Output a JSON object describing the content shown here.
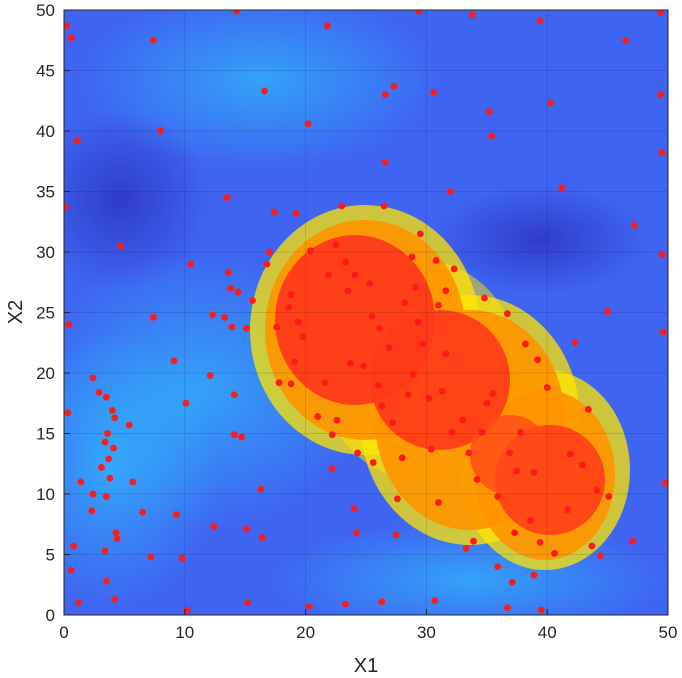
{
  "chart_data": {
    "type": "scatter",
    "title": "",
    "xlabel": "X1",
    "ylabel": "X2",
    "xlim": [
      0,
      50
    ],
    "ylim": [
      0,
      50
    ],
    "xticks": [
      "0",
      "10",
      "20",
      "30",
      "40",
      "50"
    ],
    "yticks": [
      "0",
      "5",
      "10",
      "15",
      "20",
      "25",
      "30",
      "35",
      "40",
      "45",
      "50"
    ],
    "grid": true,
    "background": "heatmap (jet colormap): high region in the center-right band, low elsewhere",
    "colors": {
      "marker": "#ff1a1a",
      "marker_dim": "#7a3aa0",
      "axis": "#262626"
    },
    "points": [
      [
        0.2,
        48.7
      ],
      [
        0.6,
        47.7
      ],
      [
        1.1,
        39.2
      ],
      [
        0.1,
        33.7
      ],
      [
        0.4,
        24.0
      ],
      [
        0.3,
        16.7
      ],
      [
        0.8,
        5.7
      ],
      [
        0.6,
        3.7
      ],
      [
        1.2,
        1.0
      ],
      [
        1.4,
        11.0
      ],
      [
        2.3,
        8.6
      ],
      [
        2.4,
        10.0
      ],
      [
        2.4,
        19.6
      ],
      [
        2.9,
        18.4
      ],
      [
        3.1,
        12.2
      ],
      [
        3.4,
        14.3
      ],
      [
        3.5,
        18.0
      ],
      [
        3.6,
        15.0
      ],
      [
        3.7,
        12.9
      ],
      [
        3.5,
        9.8
      ],
      [
        3.8,
        11.3
      ],
      [
        3.4,
        5.3
      ],
      [
        3.5,
        2.8
      ],
      [
        4.0,
        16.9
      ],
      [
        4.2,
        16.3
      ],
      [
        4.1,
        13.8
      ],
      [
        4.3,
        6.8
      ],
      [
        4.4,
        6.3
      ],
      [
        4.2,
        1.3
      ],
      [
        4.7,
        30.5
      ],
      [
        5.4,
        15.7
      ],
      [
        5.7,
        11.0
      ],
      [
        6.5,
        8.5
      ],
      [
        7.2,
        4.8
      ],
      [
        7.4,
        24.6
      ],
      [
        7.4,
        47.5
      ],
      [
        8.0,
        40.0
      ],
      [
        9.1,
        21.0
      ],
      [
        9.3,
        8.3
      ],
      [
        9.8,
        4.7
      ],
      [
        10.1,
        17.5
      ],
      [
        10.2,
        0.4
      ],
      [
        10.5,
        29.0
      ],
      [
        12.1,
        19.8
      ],
      [
        12.3,
        24.8
      ],
      [
        12.4,
        7.3
      ],
      [
        13.3,
        24.6
      ],
      [
        13.5,
        34.5
      ],
      [
        13.6,
        28.3
      ],
      [
        13.8,
        27.0
      ],
      [
        13.9,
        23.8
      ],
      [
        14.1,
        18.2
      ],
      [
        14.1,
        14.9
      ],
      [
        14.3,
        49.9
      ],
      [
        14.4,
        26.7
      ],
      [
        14.7,
        14.7
      ],
      [
        15.1,
        23.7
      ],
      [
        15.1,
        7.1
      ],
      [
        15.2,
        1.0
      ],
      [
        15.6,
        26.0
      ],
      [
        16.3,
        10.4
      ],
      [
        16.4,
        6.4
      ],
      [
        16.6,
        43.3
      ],
      [
        16.8,
        29.0
      ],
      [
        17.0,
        30.0
      ],
      [
        17.4,
        33.3
      ],
      [
        17.6,
        23.8
      ],
      [
        17.8,
        19.2
      ],
      [
        18.6,
        25.4
      ],
      [
        18.8,
        19.1
      ],
      [
        18.8,
        26.5
      ],
      [
        19.1,
        20.9
      ],
      [
        19.2,
        33.2
      ],
      [
        19.4,
        24.2
      ],
      [
        19.8,
        23.0
      ],
      [
        20.2,
        40.6
      ],
      [
        20.3,
        0.7
      ],
      [
        21.0,
        16.4
      ],
      [
        21.8,
        48.7
      ],
      [
        21.9,
        28.1
      ],
      [
        22.2,
        14.9
      ],
      [
        22.2,
        12.1
      ],
      [
        22.6,
        16.1
      ],
      [
        23.0,
        33.8
      ],
      [
        23.3,
        29.2
      ],
      [
        23.5,
        26.8
      ],
      [
        23.7,
        20.8
      ],
      [
        24.1,
        28.1
      ],
      [
        24.2,
        6.8
      ],
      [
        24.3,
        13.4
      ],
      [
        24.8,
        20.6
      ],
      [
        25.3,
        27.4
      ],
      [
        25.5,
        24.7
      ],
      [
        26.0,
        19.0
      ],
      [
        26.3,
        17.3
      ],
      [
        26.5,
        33.8
      ],
      [
        26.6,
        37.4
      ],
      [
        26.6,
        43.0
      ],
      [
        26.9,
        22.1
      ],
      [
        27.2,
        15.9
      ],
      [
        27.3,
        43.7
      ],
      [
        27.6,
        9.6
      ],
      [
        28.2,
        25.8
      ],
      [
        28.5,
        18.2
      ],
      [
        28.9,
        19.9
      ],
      [
        29.1,
        27.1
      ],
      [
        29.4,
        49.9
      ],
      [
        29.5,
        31.5
      ],
      [
        29.7,
        22.4
      ],
      [
        30.2,
        17.9
      ],
      [
        30.6,
        43.2
      ],
      [
        30.8,
        29.3
      ],
      [
        31.0,
        25.6
      ],
      [
        31.3,
        18.5
      ],
      [
        31.6,
        26.8
      ],
      [
        32.0,
        35.0
      ],
      [
        32.3,
        28.6
      ],
      [
        33.0,
        16.1
      ],
      [
        33.3,
        5.5
      ],
      [
        33.8,
        49.6
      ],
      [
        34.2,
        11.2
      ],
      [
        34.8,
        26.2
      ],
      [
        35.0,
        17.5
      ],
      [
        35.2,
        41.6
      ],
      [
        35.4,
        39.6
      ],
      [
        35.9,
        4.0
      ],
      [
        36.7,
        24.9
      ],
      [
        36.9,
        13.4
      ],
      [
        37.1,
        2.7
      ],
      [
        37.5,
        11.9
      ],
      [
        38.2,
        22.4
      ],
      [
        38.6,
        7.8
      ],
      [
        39.2,
        21.1
      ],
      [
        39.4,
        6.0
      ],
      [
        40.0,
        18.8
      ],
      [
        40.3,
        42.3
      ],
      [
        40.6,
        5.1
      ],
      [
        41.2,
        35.3
      ],
      [
        41.9,
        13.3
      ],
      [
        42.3,
        22.5
      ],
      [
        43.4,
        17.0
      ],
      [
        43.7,
        5.7
      ],
      [
        44.1,
        10.3
      ],
      [
        44.4,
        4.9
      ],
      [
        45.0,
        25.1
      ],
      [
        45.1,
        9.8
      ],
      [
        46.5,
        47.5
      ],
      [
        47.1,
        6.1
      ],
      [
        47.2,
        32.2
      ],
      [
        49.4,
        49.8
      ],
      [
        49.4,
        43.0
      ],
      [
        49.5,
        38.2
      ],
      [
        49.5,
        29.8
      ],
      [
        49.6,
        23.4
      ],
      [
        49.8,
        10.9
      ],
      [
        39.4,
        49.1
      ],
      [
        39.5,
        0.4
      ],
      [
        38.9,
        3.3
      ],
      [
        36.7,
        0.6
      ],
      [
        30.7,
        1.2
      ],
      [
        26.3,
        1.1
      ],
      [
        23.3,
        0.9
      ],
      [
        32.1,
        15.1
      ],
      [
        33.9,
        6.1
      ],
      [
        31.0,
        9.3
      ],
      [
        35.5,
        18.3
      ],
      [
        28.0,
        13.0
      ],
      [
        25.6,
        12.6
      ],
      [
        27.5,
        6.6
      ],
      [
        24.0,
        8.8
      ],
      [
        20.4,
        30.1
      ],
      [
        21.6,
        19.2
      ],
      [
        22.5,
        30.6
      ],
      [
        26.1,
        23.7
      ],
      [
        28.8,
        29.6
      ],
      [
        30.4,
        13.7
      ],
      [
        33.5,
        13.4
      ],
      [
        35.9,
        9.8
      ],
      [
        37.8,
        15.1
      ],
      [
        38.9,
        11.8
      ],
      [
        41.7,
        8.7
      ],
      [
        42.9,
        12.4
      ],
      [
        37.3,
        6.8
      ],
      [
        34.6,
        15.1
      ],
      [
        31.6,
        21.6
      ],
      [
        29.3,
        24.2
      ]
    ]
  }
}
